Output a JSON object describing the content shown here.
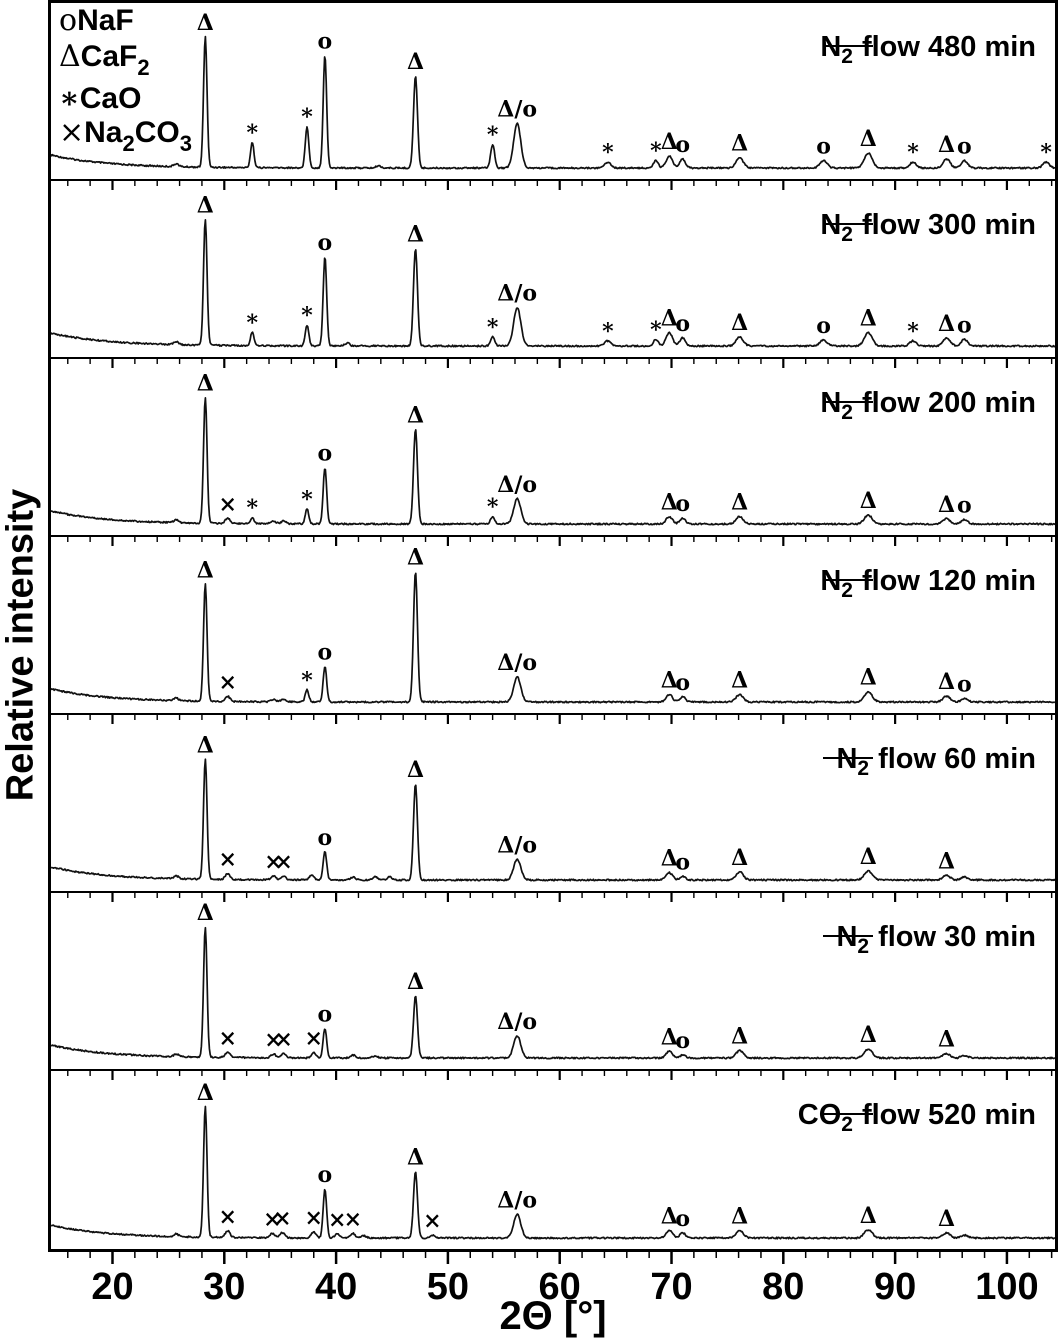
{
  "figure": {
    "ylabel": "Relative intensity",
    "xlabel": "2Θ [°]",
    "background_color": "#ffffff",
    "frame_color": "#000000",
    "trace_color": "#111111"
  },
  "phase_legend": {
    "entries": [
      {
        "symbol": "o",
        "label": "NaF",
        "parts": [
          {
            "t": "NaF"
          }
        ]
      },
      {
        "symbol": "Δ",
        "label": "CaF₂",
        "parts": [
          {
            "t": "CaF"
          },
          {
            "t": "2",
            "sub": true
          }
        ]
      },
      {
        "symbol": "∗",
        "label": "CaO",
        "parts": [
          {
            "t": "CaO"
          }
        ]
      },
      {
        "symbol": "×",
        "label": "Na₂CO₃",
        "parts": [
          {
            "t": "Na"
          },
          {
            "t": "2",
            "sub": true
          },
          {
            "t": "CO"
          },
          {
            "t": "3",
            "sub": true
          }
        ]
      }
    ]
  },
  "chart_data": {
    "type": "line",
    "title": "",
    "xlabel": "2Θ [°]",
    "ylabel": "Relative intensity",
    "x_range": [
      14.5,
      104.3
    ],
    "x_major_ticks": [
      20,
      30,
      40,
      50,
      60,
      70,
      80,
      90,
      100
    ],
    "x_minor_step": 2,
    "grid": false,
    "legend_position": "top-right of each panel",
    "marker_meaning": {
      "o": "NaF",
      "Δ": "CaF₂",
      "∗": "CaO",
      "×": "Na₂CO₃",
      "Δ/o": "CaF₂ + NaF overlapping"
    },
    "peak_format": [
      "two_theta_deg",
      "relative_height_0to1",
      "width_deg",
      "phase_marker"
    ],
    "panels": [
      {
        "label": "N₂ flow 480 min",
        "label_parts": {
          "base": "N",
          "sub": "2",
          "rest": "flow 480 min"
        },
        "peaks": [
          [
            25.7,
            0.02,
            0.3,
            ""
          ],
          [
            28.3,
            0.88,
            0.22,
            "Δ"
          ],
          [
            32.5,
            0.17,
            0.22,
            "∗"
          ],
          [
            37.4,
            0.28,
            0.22,
            "∗"
          ],
          [
            39.0,
            0.76,
            0.22,
            "o"
          ],
          [
            43.8,
            0.015,
            0.3,
            ""
          ],
          [
            47.1,
            0.62,
            0.25,
            "Δ"
          ],
          [
            54.0,
            0.16,
            0.25,
            "∗"
          ],
          [
            56.2,
            0.3,
            0.45,
            "Δ/o"
          ],
          [
            64.3,
            0.04,
            0.4,
            "∗"
          ],
          [
            68.6,
            0.05,
            0.3,
            "∗"
          ],
          [
            69.8,
            0.08,
            0.4,
            "Δ"
          ],
          [
            71.0,
            0.06,
            0.35,
            "o"
          ],
          [
            76.1,
            0.07,
            0.45,
            "Δ"
          ],
          [
            83.6,
            0.05,
            0.45,
            "o"
          ],
          [
            87.6,
            0.1,
            0.5,
            "Δ"
          ],
          [
            91.6,
            0.04,
            0.4,
            "∗"
          ],
          [
            94.6,
            0.06,
            0.45,
            "Δ"
          ],
          [
            96.2,
            0.05,
            0.4,
            "o"
          ],
          [
            103.5,
            0.04,
            0.4,
            "∗"
          ]
        ]
      },
      {
        "label": "N₂ flow 300 min",
        "label_parts": {
          "base": "N",
          "sub": "2",
          "rest": "flow 300 min"
        },
        "peaks": [
          [
            25.7,
            0.02,
            0.3,
            ""
          ],
          [
            28.3,
            0.85,
            0.22,
            "Δ"
          ],
          [
            32.5,
            0.09,
            0.22,
            "∗"
          ],
          [
            37.4,
            0.14,
            0.22,
            "∗"
          ],
          [
            39.0,
            0.6,
            0.22,
            "o"
          ],
          [
            41.0,
            0.02,
            0.3,
            ""
          ],
          [
            47.1,
            0.66,
            0.25,
            "Δ"
          ],
          [
            54.0,
            0.06,
            0.25,
            "∗"
          ],
          [
            56.2,
            0.26,
            0.45,
            "Δ/o"
          ],
          [
            64.3,
            0.035,
            0.4,
            "∗"
          ],
          [
            68.6,
            0.045,
            0.3,
            "∗"
          ],
          [
            69.8,
            0.09,
            0.4,
            "Δ"
          ],
          [
            71.0,
            0.055,
            0.35,
            "o"
          ],
          [
            76.1,
            0.06,
            0.45,
            "Δ"
          ],
          [
            83.6,
            0.04,
            0.45,
            "o"
          ],
          [
            87.6,
            0.09,
            0.5,
            "Δ"
          ],
          [
            91.6,
            0.035,
            0.4,
            "∗"
          ],
          [
            94.6,
            0.055,
            0.45,
            "Δ"
          ],
          [
            96.2,
            0.045,
            0.4,
            "o"
          ]
        ]
      },
      {
        "label": "N₂ flow 200 min",
        "label_parts": {
          "base": "N",
          "sub": "2",
          "rest": "flow 200 min"
        },
        "peaks": [
          [
            25.7,
            0.02,
            0.3,
            ""
          ],
          [
            28.3,
            0.85,
            0.22,
            "Δ"
          ],
          [
            30.3,
            0.035,
            0.3,
            "×"
          ],
          [
            32.5,
            0.04,
            0.22,
            "∗"
          ],
          [
            34.4,
            0.02,
            0.3,
            ""
          ],
          [
            35.3,
            0.02,
            0.3,
            ""
          ],
          [
            37.4,
            0.1,
            0.22,
            "∗"
          ],
          [
            39.0,
            0.38,
            0.22,
            "o"
          ],
          [
            47.1,
            0.64,
            0.25,
            "Δ"
          ],
          [
            54.0,
            0.05,
            0.25,
            "∗"
          ],
          [
            56.2,
            0.17,
            0.45,
            "Δ/o"
          ],
          [
            69.8,
            0.05,
            0.4,
            "Δ"
          ],
          [
            71.0,
            0.04,
            0.35,
            "o"
          ],
          [
            76.1,
            0.05,
            0.45,
            "Δ"
          ],
          [
            87.6,
            0.06,
            0.5,
            "Δ"
          ],
          [
            94.6,
            0.035,
            0.45,
            "Δ"
          ],
          [
            96.2,
            0.03,
            0.4,
            "o"
          ]
        ]
      },
      {
        "label": "N₂ flow 120 min",
        "label_parts": {
          "base": "N",
          "sub": "2",
          "rest": "flow 120 min"
        },
        "peaks": [
          [
            25.7,
            0.018,
            0.3,
            ""
          ],
          [
            28.3,
            0.79,
            0.22,
            "Δ"
          ],
          [
            30.3,
            0.035,
            0.3,
            "×"
          ],
          [
            34.4,
            0.018,
            0.3,
            ""
          ],
          [
            35.3,
            0.018,
            0.3,
            ""
          ],
          [
            37.4,
            0.08,
            0.22,
            "∗"
          ],
          [
            39.0,
            0.24,
            0.22,
            "o"
          ],
          [
            47.1,
            0.88,
            0.25,
            "Δ"
          ],
          [
            56.2,
            0.17,
            0.45,
            "Δ/o"
          ],
          [
            69.8,
            0.05,
            0.4,
            "Δ"
          ],
          [
            71.0,
            0.035,
            0.35,
            "o"
          ],
          [
            76.1,
            0.05,
            0.45,
            "Δ"
          ],
          [
            87.6,
            0.07,
            0.5,
            "Δ"
          ],
          [
            94.6,
            0.04,
            0.45,
            "Δ"
          ],
          [
            96.2,
            0.025,
            0.4,
            "o"
          ]
        ]
      },
      {
        "label": "N₂ flow 60 min",
        "label_parts": {
          "base": "N",
          "sub": "2",
          "rest": "flow 60 min"
        },
        "peaks": [
          [
            25.7,
            0.018,
            0.3,
            ""
          ],
          [
            28.3,
            0.81,
            0.22,
            "Δ"
          ],
          [
            30.3,
            0.04,
            0.3,
            "×"
          ],
          [
            34.4,
            0.025,
            0.3,
            "×"
          ],
          [
            35.3,
            0.025,
            0.3,
            "×"
          ],
          [
            37.8,
            0.03,
            0.3,
            ""
          ],
          [
            39.0,
            0.19,
            0.22,
            "o"
          ],
          [
            41.5,
            0.02,
            0.3,
            ""
          ],
          [
            43.5,
            0.02,
            0.3,
            ""
          ],
          [
            44.8,
            0.02,
            0.3,
            ""
          ],
          [
            47.1,
            0.65,
            0.25,
            "Δ"
          ],
          [
            56.2,
            0.14,
            0.45,
            "Δ/o"
          ],
          [
            69.8,
            0.05,
            0.4,
            "Δ"
          ],
          [
            71.0,
            0.025,
            0.35,
            "o"
          ],
          [
            76.1,
            0.055,
            0.45,
            "Δ"
          ],
          [
            87.6,
            0.06,
            0.5,
            "Δ"
          ],
          [
            94.6,
            0.03,
            0.45,
            "Δ"
          ],
          [
            96.2,
            0.02,
            0.4,
            ""
          ]
        ]
      },
      {
        "label": "N₂ flow 30 min",
        "label_parts": {
          "base": "N",
          "sub": "2",
          "rest": "flow 30 min"
        },
        "peaks": [
          [
            25.7,
            0.018,
            0.3,
            ""
          ],
          [
            28.3,
            0.88,
            0.22,
            "Δ"
          ],
          [
            30.3,
            0.035,
            0.3,
            "×"
          ],
          [
            34.4,
            0.025,
            0.3,
            "×"
          ],
          [
            35.3,
            0.03,
            0.3,
            "×"
          ],
          [
            38.0,
            0.035,
            0.3,
            "×"
          ],
          [
            39.0,
            0.2,
            0.22,
            "o"
          ],
          [
            41.5,
            0.02,
            0.3,
            ""
          ],
          [
            43.5,
            0.015,
            0.3,
            ""
          ],
          [
            47.1,
            0.42,
            0.25,
            "Δ"
          ],
          [
            56.2,
            0.15,
            0.45,
            "Δ/o"
          ],
          [
            69.8,
            0.045,
            0.4,
            "Δ"
          ],
          [
            71.0,
            0.02,
            0.35,
            "o"
          ],
          [
            76.1,
            0.05,
            0.45,
            "Δ"
          ],
          [
            87.6,
            0.06,
            0.5,
            "Δ"
          ],
          [
            94.6,
            0.03,
            0.45,
            "Δ"
          ],
          [
            96.2,
            0.018,
            0.4,
            ""
          ]
        ]
      },
      {
        "label": "CO₂ flow 520 min",
        "label_parts": {
          "base": "CO",
          "sub": "2",
          "rest": "flow 520 min"
        },
        "peaks": [
          [
            25.7,
            0.018,
            0.3,
            ""
          ],
          [
            28.3,
            0.88,
            0.22,
            "Δ"
          ],
          [
            30.3,
            0.045,
            0.3,
            "×"
          ],
          [
            34.3,
            0.03,
            0.3,
            "×"
          ],
          [
            35.2,
            0.035,
            0.3,
            "×"
          ],
          [
            38.0,
            0.04,
            0.3,
            "×"
          ],
          [
            39.0,
            0.33,
            0.22,
            "o"
          ],
          [
            40.1,
            0.025,
            0.3,
            "×"
          ],
          [
            41.5,
            0.03,
            0.3,
            "×"
          ],
          [
            42.5,
            0.015,
            0.3,
            ""
          ],
          [
            47.1,
            0.45,
            0.25,
            "Δ"
          ],
          [
            48.6,
            0.02,
            0.3,
            "×"
          ],
          [
            56.2,
            0.16,
            0.45,
            "Δ/o"
          ],
          [
            69.8,
            0.05,
            0.4,
            "Δ"
          ],
          [
            71.0,
            0.035,
            0.35,
            "o"
          ],
          [
            76.1,
            0.05,
            0.45,
            "Δ"
          ],
          [
            87.6,
            0.055,
            0.5,
            "Δ"
          ],
          [
            94.6,
            0.035,
            0.45,
            "Δ"
          ],
          [
            96.2,
            0.02,
            0.4,
            ""
          ]
        ]
      }
    ]
  }
}
